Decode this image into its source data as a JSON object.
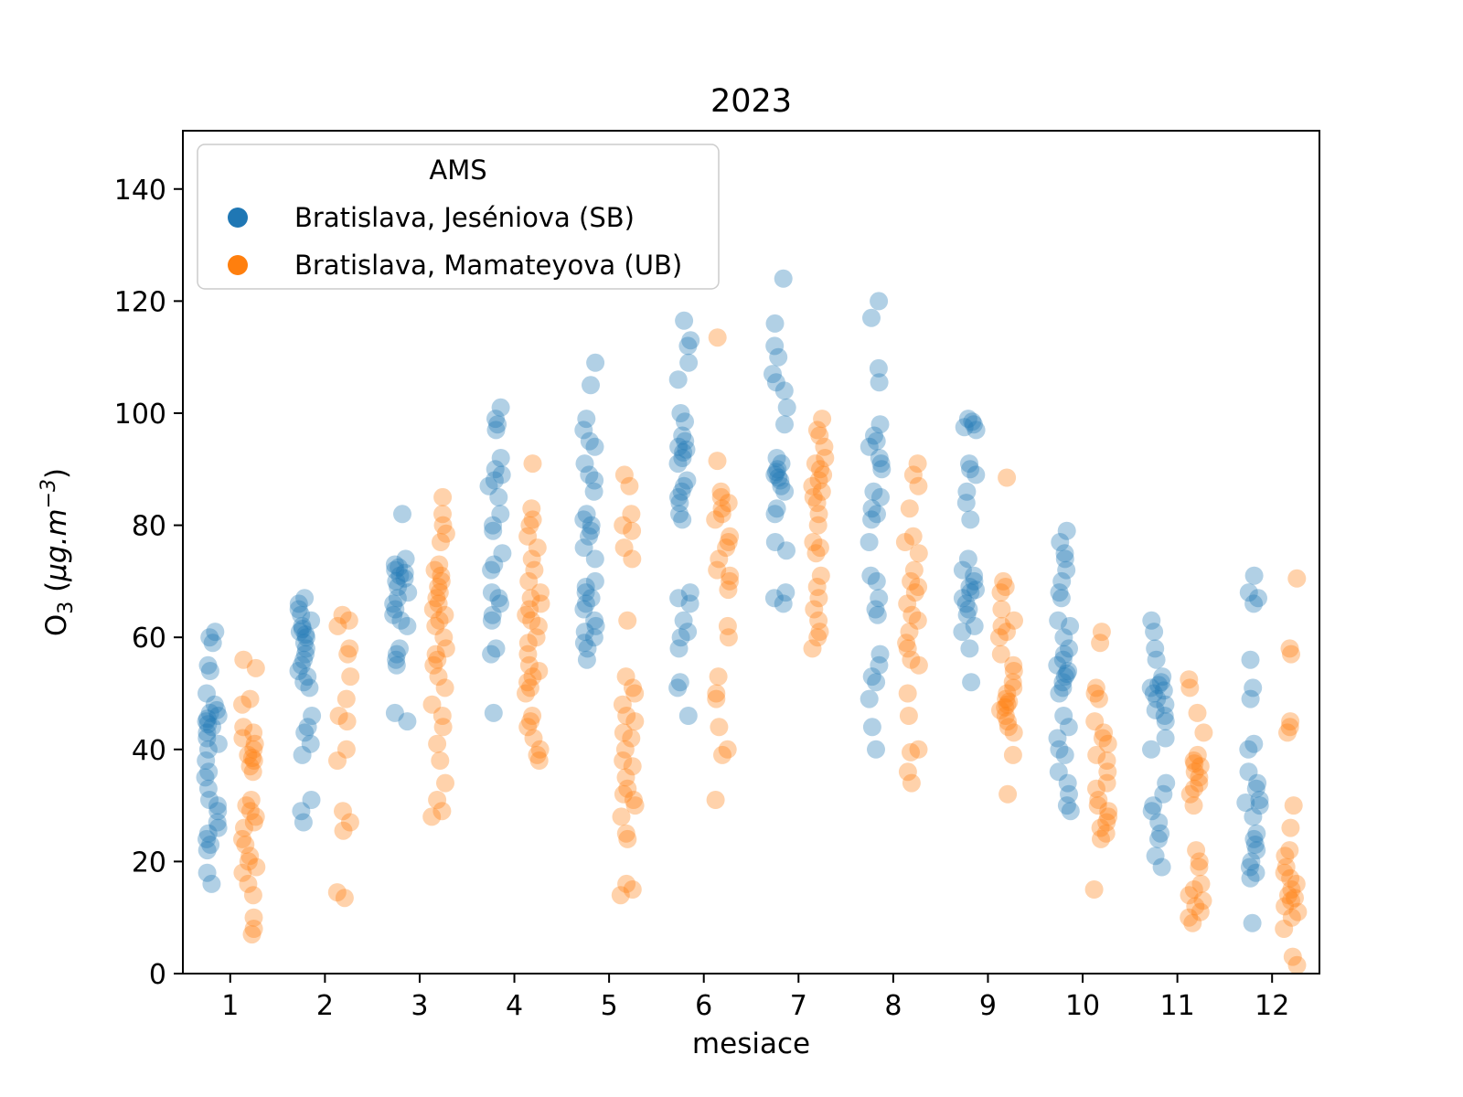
{
  "page": {
    "background": "#ffffff"
  },
  "chart_data": {
    "type": "scatter",
    "subtype": "strip-plot-dodged",
    "title": "2023",
    "xlabel": "mesiace",
    "ylabel": "O3 (μg.m−3)",
    "ylabel_parts": {
      "base": "O",
      "base_sub": "3",
      "unit_open": "  (",
      "unit_italic": "μg.m",
      "unit_sup": "−3",
      "unit_close": ")"
    },
    "x_ticks": [
      1,
      2,
      3,
      4,
      5,
      6,
      7,
      8,
      9,
      10,
      11,
      12
    ],
    "y_ticks": [
      0,
      20,
      40,
      60,
      80,
      100,
      120,
      140
    ],
    "xlim": [
      0.5,
      12.5
    ],
    "ylim": [
      0,
      150.4
    ],
    "grid": false,
    "legend": {
      "title": "AMS",
      "position": "upper-left",
      "entries": [
        {
          "label": "Bratislava, Jeséniova (SB)",
          "color": "#1f77b4"
        },
        {
          "label": "Bratislava, Mamateyova (UB)",
          "color": "#ff7f0e"
        }
      ]
    },
    "marker": {
      "alpha": 0.35,
      "radius_px": 10,
      "jitter": 0.08,
      "dodge": 0.2
    },
    "series": [
      {
        "name": "Bratislava, Jeséniova (SB)",
        "color": "#1f77b4",
        "dodge": -0.2,
        "points_by_month": {
          "1": [
            61,
            60,
            59,
            55,
            54,
            50,
            48,
            47,
            46.5,
            46,
            45.5,
            45,
            44.5,
            44,
            43,
            42,
            41,
            40,
            38,
            36,
            35,
            33,
            31,
            30,
            29,
            27,
            26,
            25,
            24,
            23,
            22,
            18,
            16
          ],
          "2": [
            67,
            66,
            65,
            64,
            63,
            62,
            61.5,
            61,
            60.5,
            60,
            59,
            58,
            57,
            56,
            55,
            54,
            53,
            52,
            51,
            46,
            44,
            43,
            41,
            39,
            31,
            29,
            27
          ],
          "3": [
            82,
            74,
            73,
            72.5,
            72,
            71.5,
            71,
            70.5,
            70,
            69,
            68,
            67,
            66,
            65,
            64,
            63,
            62,
            58,
            57,
            56,
            55,
            46.5,
            45
          ],
          "4": [
            101,
            99,
            98,
            97,
            92,
            90,
            89,
            88,
            87,
            85,
            82,
            80,
            79,
            75,
            73,
            72,
            68,
            67,
            66,
            64,
            63,
            58,
            57,
            46.5
          ],
          "5": [
            109,
            105,
            99,
            97,
            95,
            94,
            91,
            89,
            88,
            86,
            82,
            81,
            80,
            79,
            78,
            76,
            74,
            70,
            69,
            68,
            67,
            66,
            65,
            63,
            62,
            61,
            60,
            59,
            58,
            56
          ],
          "6": [
            116.5,
            113,
            112,
            109,
            106,
            100,
            98.5,
            96,
            95,
            94,
            93.5,
            93,
            92,
            91,
            88,
            87,
            86,
            85,
            84,
            82,
            81,
            68,
            67,
            66,
            63,
            61,
            60,
            58,
            52,
            51,
            46
          ],
          "7": [
            124,
            116,
            112,
            110,
            107,
            105.5,
            104,
            101,
            98,
            92,
            91,
            90,
            89.5,
            89,
            88.5,
            88,
            87,
            86,
            83,
            82,
            77,
            75.5,
            68,
            67,
            66
          ],
          "8": [
            120,
            117,
            108,
            105.5,
            98,
            96,
            95,
            94,
            92,
            91,
            90,
            86,
            85,
            83,
            82,
            81,
            77,
            71,
            70,
            67,
            65,
            64,
            57,
            55,
            53,
            52,
            49,
            44,
            40
          ],
          "9": [
            99,
            98.5,
            98,
            97.5,
            97,
            91,
            90,
            89,
            86,
            84,
            81,
            74,
            72,
            71,
            70,
            69,
            68.5,
            68,
            67,
            66,
            65,
            64,
            62,
            61,
            58,
            52
          ],
          "10": [
            79,
            77,
            75,
            74,
            72,
            70,
            68,
            67,
            63,
            62,
            60,
            58,
            57,
            56,
            55,
            54,
            53.5,
            53,
            52,
            51,
            50,
            46,
            44,
            42,
            40,
            39,
            36,
            34,
            32,
            30,
            29
          ],
          "11": [
            63,
            61,
            58,
            56,
            53,
            52,
            51.5,
            51,
            50.5,
            50,
            49,
            48,
            47,
            46,
            45,
            42,
            40,
            34,
            32,
            30,
            29,
            27,
            25,
            24,
            21,
            19
          ],
          "12": [
            71,
            68,
            67,
            66,
            56,
            51,
            49,
            41,
            40,
            36,
            34,
            33,
            31,
            30.5,
            30,
            28,
            25,
            24,
            23,
            22,
            20,
            19,
            18,
            17,
            9
          ]
        }
      },
      {
        "name": "Bratislava, Mamateyova (UB)",
        "color": "#ff7f0e",
        "dodge": 0.2,
        "points_by_month": {
          "1": [
            56,
            54.5,
            49,
            48,
            44,
            43,
            42,
            41,
            40,
            39,
            38.5,
            38,
            37,
            36,
            31,
            30,
            29,
            28,
            27,
            26,
            24,
            23,
            21,
            20,
            19,
            18,
            16,
            14,
            10,
            8,
            7
          ],
          "2": [
            64,
            63,
            62,
            58,
            57,
            53,
            49,
            46,
            45,
            40,
            38,
            29,
            27,
            25.5,
            14.5,
            13.5
          ],
          "3": [
            85,
            82,
            80,
            78.5,
            77,
            73,
            72,
            71,
            70,
            69,
            68,
            67,
            66,
            65,
            64,
            63,
            62,
            60,
            58,
            57,
            56,
            55,
            53,
            51,
            48,
            46,
            44,
            41,
            38,
            34,
            31,
            29,
            28
          ],
          "4": [
            91,
            83,
            81,
            80,
            78,
            76,
            74,
            72,
            70,
            68,
            67,
            66,
            65,
            64,
            63,
            62,
            60,
            59,
            57,
            55,
            54,
            53,
            52,
            51,
            50,
            46,
            45,
            44,
            42,
            40,
            39,
            38
          ],
          "5": [
            89,
            87,
            82,
            80,
            79,
            76,
            74,
            63,
            53,
            51,
            50,
            48,
            46,
            45,
            43,
            42,
            40,
            38,
            37,
            35,
            33,
            32,
            31,
            30,
            28,
            25,
            24,
            16,
            15,
            14
          ],
          "6": [
            113.5,
            91.5,
            86,
            85,
            84,
            83,
            82,
            81,
            78,
            77,
            76,
            74,
            72,
            71,
            70,
            68.5,
            62,
            60,
            53,
            50,
            49,
            44,
            40,
            39,
            31
          ],
          "7": [
            99,
            97,
            96,
            94,
            92,
            91,
            90,
            89,
            88,
            87,
            86,
            85,
            84,
            82,
            80,
            77,
            76,
            75,
            71,
            69,
            67,
            65,
            63,
            61,
            60,
            58
          ],
          "8": [
            91,
            89,
            87,
            83,
            78,
            77,
            75,
            72,
            70,
            69,
            68,
            66,
            64,
            63,
            61,
            59,
            58,
            56,
            55,
            50,
            46,
            40,
            39.5,
            36,
            34
          ],
          "9": [
            88.5,
            70,
            69,
            68,
            65,
            63,
            62,
            61,
            60,
            57,
            55,
            54,
            52,
            51,
            50,
            49,
            48.5,
            48,
            47.5,
            47,
            46,
            45,
            44,
            43,
            39,
            32
          ],
          "10": [
            61,
            59,
            51,
            50,
            49,
            45,
            43,
            42,
            41,
            39,
            38,
            36,
            34,
            33,
            31,
            30,
            29,
            28,
            27,
            26,
            25,
            24,
            15
          ],
          "11": [
            52.5,
            51,
            46.5,
            43,
            39,
            38,
            37.5,
            37,
            36,
            35,
            34,
            33,
            32,
            30,
            22,
            20,
            19,
            16,
            15,
            14,
            13,
            12,
            11,
            10,
            9
          ],
          "12": [
            70.5,
            58,
            57,
            45,
            44,
            43,
            30,
            26,
            22,
            21,
            19,
            18,
            17,
            16,
            15,
            14,
            13.5,
            13,
            12,
            11,
            10,
            8,
            3,
            1.5
          ]
        }
      }
    ]
  }
}
